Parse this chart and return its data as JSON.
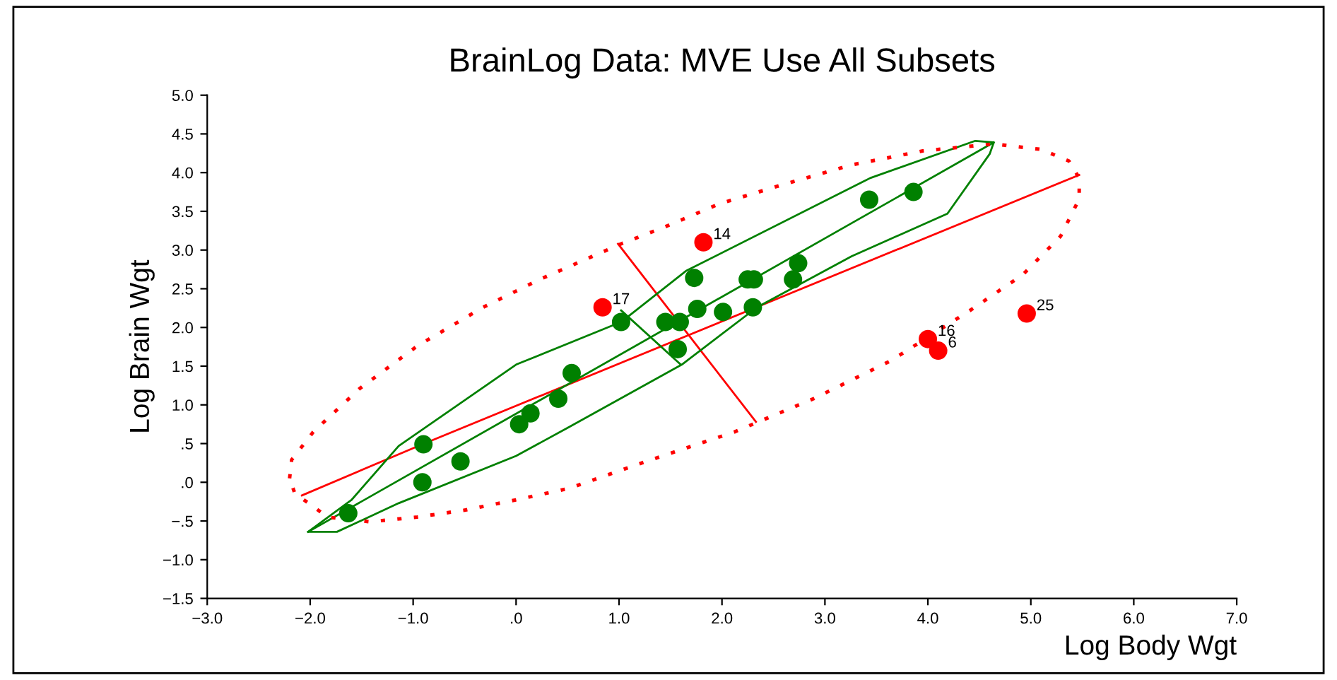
{
  "chart_data": {
    "type": "scatter",
    "title": "BrainLog Data: MVE Use All Subsets",
    "xlabel": "Log Body Wgt",
    "ylabel": "Log Brain Wgt",
    "xlim": [
      -3.0,
      7.0
    ],
    "ylim": [
      -1.5,
      5.0
    ],
    "xticks": [
      {
        "value": -3,
        "label": "−3.0"
      },
      {
        "value": -2,
        "label": "−2.0"
      },
      {
        "value": -1,
        "label": "−1.0"
      },
      {
        "value": 0,
        "label": ".0"
      },
      {
        "value": 1,
        "label": "1.0"
      },
      {
        "value": 2,
        "label": "2.0"
      },
      {
        "value": 3,
        "label": "3.0"
      },
      {
        "value": 4,
        "label": "4.0"
      },
      {
        "value": 5,
        "label": "5.0"
      },
      {
        "value": 6,
        "label": "6.0"
      },
      {
        "value": 7,
        "label": "7.0"
      }
    ],
    "yticks": [
      {
        "value": -1.5,
        "label": "−1.5"
      },
      {
        "value": -1,
        "label": "−1.0"
      },
      {
        "value": -0.5,
        "label": "−.5"
      },
      {
        "value": 0,
        "label": ".0"
      },
      {
        "value": 0.5,
        "label": ".5"
      },
      {
        "value": 1,
        "label": "1.0"
      },
      {
        "value": 1.5,
        "label": "1.5"
      },
      {
        "value": 2,
        "label": "2.0"
      },
      {
        "value": 2.5,
        "label": "2.5"
      },
      {
        "value": 3,
        "label": "3.0"
      },
      {
        "value": 3.5,
        "label": "3.5"
      },
      {
        "value": 4,
        "label": "4.0"
      },
      {
        "value": 4.5,
        "label": "4.5"
      },
      {
        "value": 5,
        "label": "5.0"
      }
    ],
    "grid": false,
    "marker": "circle",
    "series": [
      {
        "type": "line",
        "marker": "none",
        "line_style": "solid",
        "color": "#ff0000",
        "x": [
          -2.08,
          -0.93,
          5.47
        ],
        "values": [
          -0.17,
          0.48,
          3.97
        ]
      },
      {
        "type": "line",
        "marker": "none",
        "line_style": "solid",
        "color": "#ff0000",
        "x": [
          0.99,
          2.33
        ],
        "values": [
          3.08,
          0.78
        ]
      },
      {
        "type": "line",
        "marker": "none",
        "line_style": "solid",
        "color": "#008000",
        "x": [
          -2.02,
          4.64
        ],
        "values": [
          -0.64,
          4.39
        ]
      },
      {
        "type": "line",
        "marker": "none",
        "line_style": "solid",
        "color": "#008000",
        "x": [
          1.02,
          1.6
        ],
        "values": [
          2.22,
          1.52
        ]
      },
      {
        "color": "#008000",
        "x": [
          -1.63,
          -0.9,
          -0.91,
          -0.54,
          0.03,
          0.14,
          0.41,
          0.54,
          1.02,
          1.45,
          1.59,
          1.57,
          1.73,
          1.76,
          2.01,
          2.3,
          2.31,
          2.25,
          2.69,
          2.74,
          3.43,
          3.86
        ],
        "values": [
          -0.4,
          0.49,
          0.0,
          0.27,
          0.75,
          0.89,
          1.08,
          1.41,
          2.07,
          2.07,
          2.07,
          1.72,
          2.64,
          2.24,
          2.2,
          2.26,
          2.62,
          2.62,
          2.62,
          2.83,
          3.65,
          3.75
        ]
      },
      {
        "color": "#ff0000",
        "x": [
          0.84,
          1.82,
          4.0,
          4.1,
          4.96
        ],
        "values": [
          2.26,
          3.1,
          1.85,
          1.7,
          2.18
        ]
      }
    ],
    "annotations": [
      {
        "text": "17",
        "x": 0.84,
        "y": 2.26
      },
      {
        "text": "14",
        "x": 1.82,
        "y": 3.1
      },
      {
        "text": "16",
        "x": 4.0,
        "y": 1.85
      },
      {
        "text": "6",
        "x": 4.1,
        "y": 1.7
      },
      {
        "text": "25",
        "x": 4.96,
        "y": 2.18
      }
    ]
  }
}
